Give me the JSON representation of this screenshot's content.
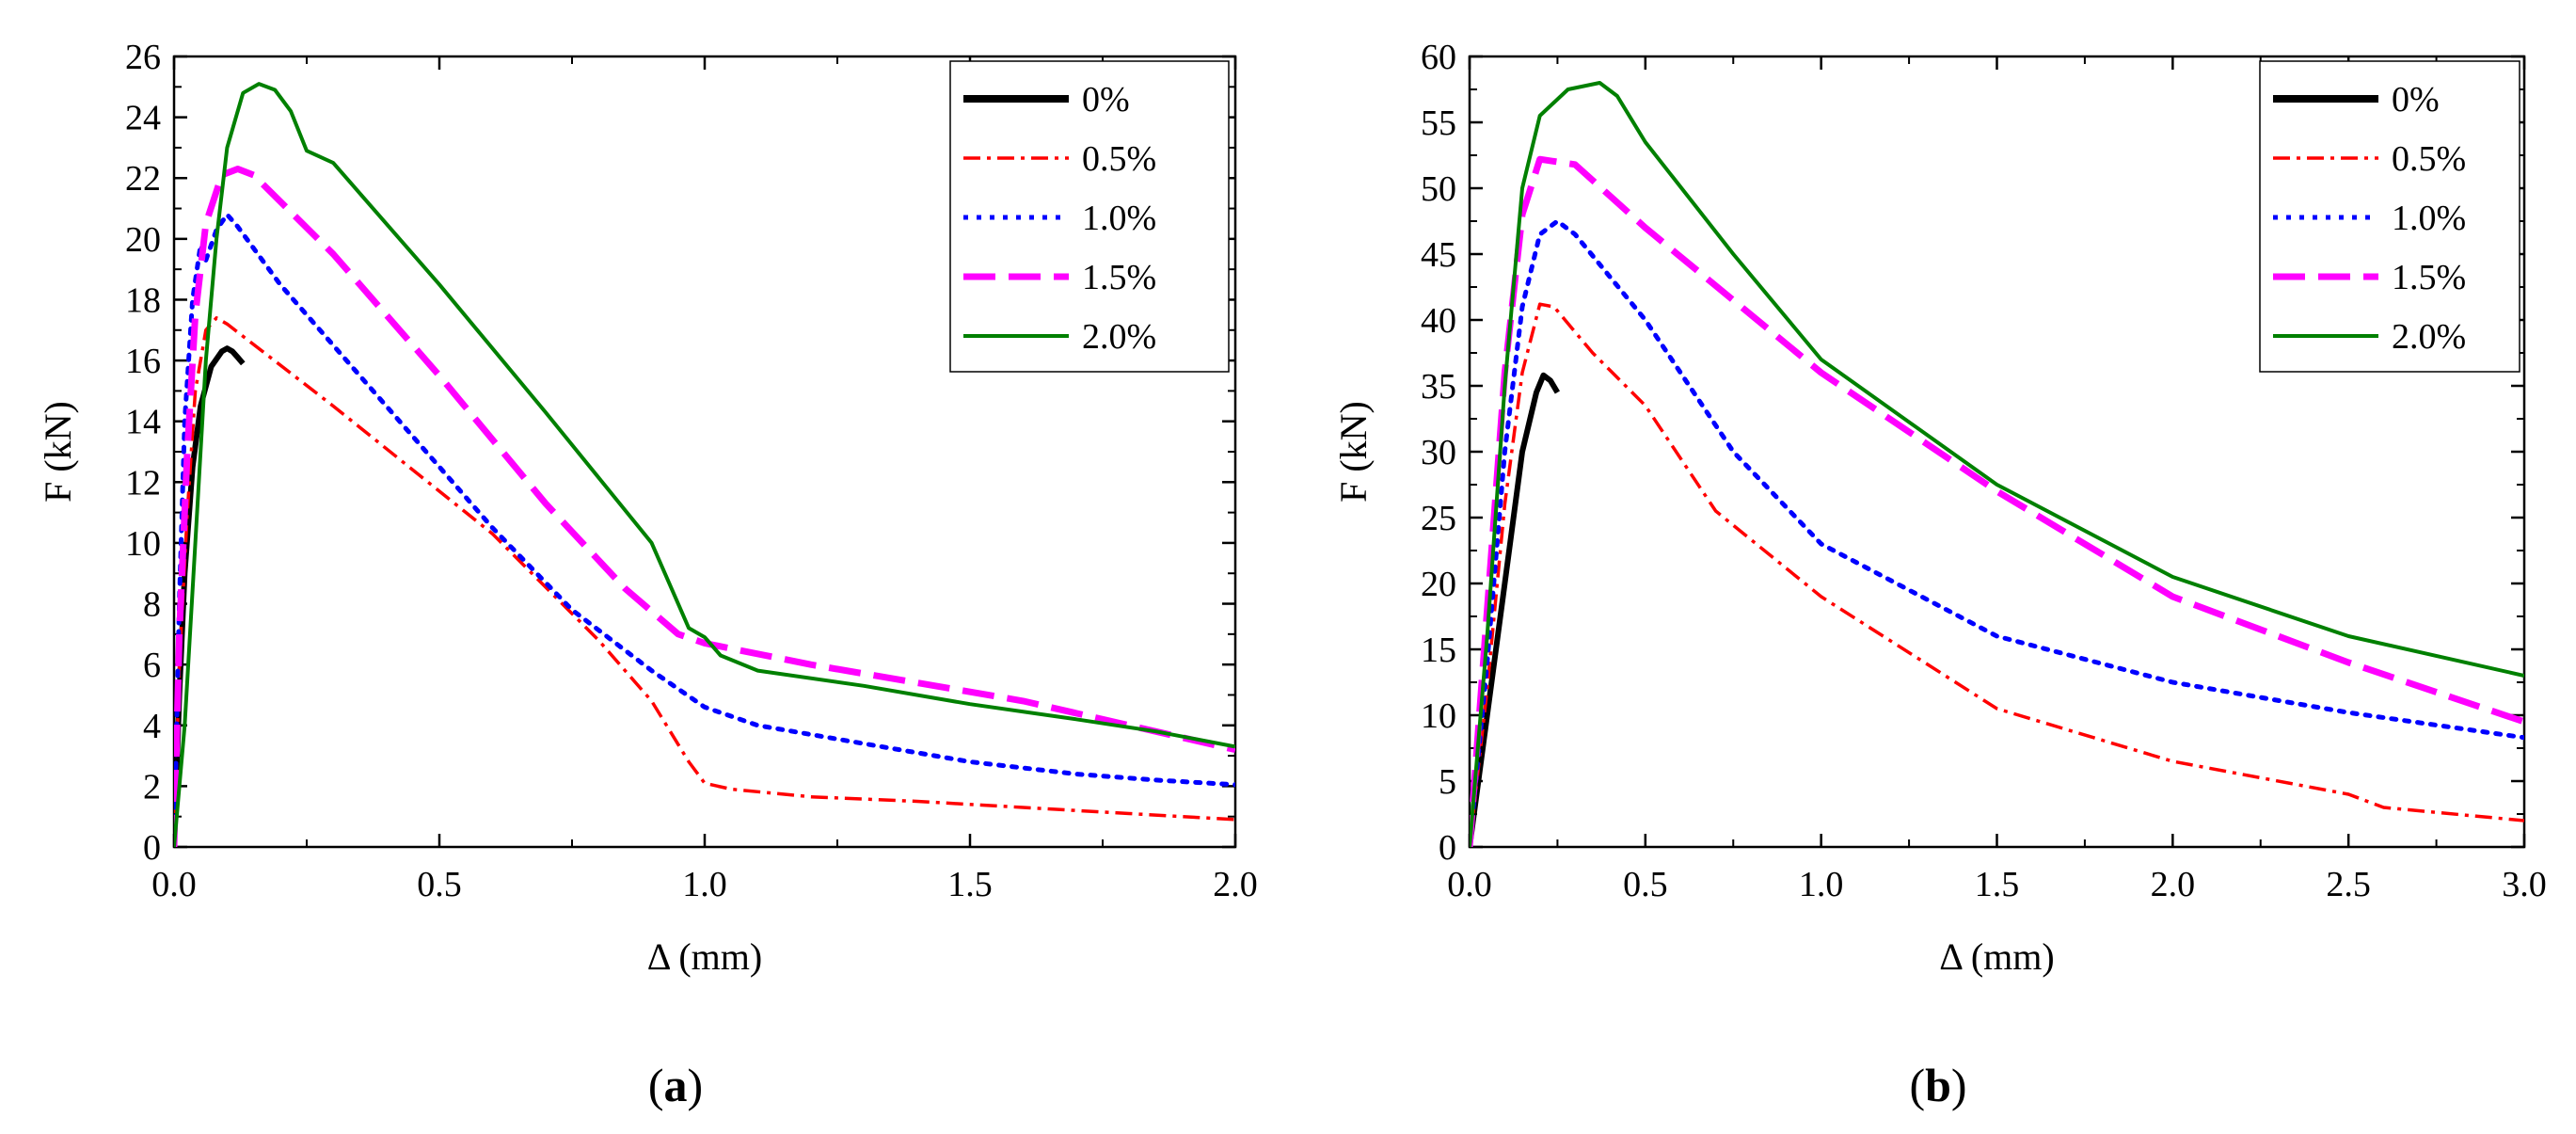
{
  "chart_data": [
    {
      "type": "line",
      "panel_label": "a",
      "xlabel": "Δ (mm)",
      "ylabel": "F (kN)",
      "xlim": [
        0,
        2.0
      ],
      "ylim": [
        0,
        26
      ],
      "xticks": [
        0,
        0.5,
        1.0,
        1.5,
        2.0
      ],
      "xtick_labels": [
        "0.0",
        "0.5",
        "1.0",
        "1.5",
        "2.0"
      ],
      "yticks": [
        0,
        2,
        4,
        6,
        8,
        10,
        12,
        14,
        16,
        18,
        20,
        22,
        24,
        26
      ],
      "ytick_labels": [
        "0",
        "2",
        "4",
        "6",
        "8",
        "10",
        "12",
        "14",
        "16",
        "18",
        "20",
        "22",
        "24",
        "26"
      ],
      "grid": false,
      "legend_position": "top-right",
      "series": [
        {
          "name": "0%",
          "color": "#000000",
          "dash": "solid",
          "points": [
            [
              0,
              0
            ],
            [
              0.01,
              5
            ],
            [
              0.02,
              9
            ],
            [
              0.035,
              12.5
            ],
            [
              0.05,
              14.5
            ],
            [
              0.07,
              15.8
            ],
            [
              0.09,
              16.3
            ],
            [
              0.1,
              16.4
            ],
            [
              0.11,
              16.3
            ],
            [
              0.12,
              16.1
            ],
            [
              0.13,
              15.9
            ]
          ]
        },
        {
          "name": "0.5%",
          "color": "#ff0000",
          "dash": "dashdot",
          "points": [
            [
              0,
              0
            ],
            [
              0.01,
              6
            ],
            [
              0.025,
              11
            ],
            [
              0.04,
              15
            ],
            [
              0.06,
              17
            ],
            [
              0.08,
              17.4
            ],
            [
              0.1,
              17.2
            ],
            [
              0.3,
              14.5
            ],
            [
              0.6,
              10.3
            ],
            [
              0.8,
              6.8
            ],
            [
              0.9,
              4.8
            ],
            [
              0.97,
              2.8
            ],
            [
              1.0,
              2.1
            ],
            [
              1.05,
              1.9
            ],
            [
              1.2,
              1.65
            ],
            [
              1.4,
              1.5
            ],
            [
              1.6,
              1.3
            ],
            [
              1.8,
              1.1
            ],
            [
              2.0,
              0.9
            ]
          ]
        },
        {
          "name": "1.0%",
          "color": "#0000ff",
          "dash": "dotted",
          "points": [
            [
              0,
              0
            ],
            [
              0.01,
              8
            ],
            [
              0.02,
              14
            ],
            [
              0.035,
              18
            ],
            [
              0.05,
              19.8
            ],
            [
              0.06,
              19.3
            ],
            [
              0.08,
              20.3
            ],
            [
              0.1,
              20.8
            ],
            [
              0.12,
              20.4
            ],
            [
              0.2,
              18.5
            ],
            [
              0.4,
              14.5
            ],
            [
              0.6,
              10.5
            ],
            [
              0.75,
              7.8
            ],
            [
              0.9,
              5.8
            ],
            [
              1.0,
              4.6
            ],
            [
              1.1,
              4.0
            ],
            [
              1.3,
              3.4
            ],
            [
              1.5,
              2.8
            ],
            [
              1.7,
              2.4
            ],
            [
              1.85,
              2.2
            ],
            [
              2.0,
              2.05
            ]
          ]
        },
        {
          "name": "1.5%",
          "color": "#ff00ff",
          "dash": "dashed",
          "points": [
            [
              0,
              0
            ],
            [
              0.01,
              7
            ],
            [
              0.025,
              13
            ],
            [
              0.04,
              17.5
            ],
            [
              0.06,
              20.5
            ],
            [
              0.09,
              22.1
            ],
            [
              0.12,
              22.3
            ],
            [
              0.15,
              22.1
            ],
            [
              0.3,
              19.5
            ],
            [
              0.5,
              15.5
            ],
            [
              0.7,
              11.3
            ],
            [
              0.85,
              8.5
            ],
            [
              0.95,
              7.0
            ],
            [
              1.0,
              6.7
            ],
            [
              1.2,
              6.0
            ],
            [
              1.4,
              5.4
            ],
            [
              1.6,
              4.8
            ],
            [
              1.8,
              4.0
            ],
            [
              2.0,
              3.2
            ]
          ]
        },
        {
          "name": "2.0%",
          "color": "#008000",
          "dash": "solid",
          "points": [
            [
              0,
              0
            ],
            [
              0.02,
              4
            ],
            [
              0.04,
              10
            ],
            [
              0.06,
              16
            ],
            [
              0.08,
              20
            ],
            [
              0.1,
              23
            ],
            [
              0.13,
              24.8
            ],
            [
              0.16,
              25.1
            ],
            [
              0.19,
              24.9
            ],
            [
              0.22,
              24.2
            ],
            [
              0.25,
              22.9
            ],
            [
              0.3,
              22.5
            ],
            [
              0.5,
              18.5
            ],
            [
              0.7,
              14.3
            ],
            [
              0.9,
              10.0
            ],
            [
              0.97,
              7.2
            ],
            [
              1.0,
              6.9
            ],
            [
              1.03,
              6.3
            ],
            [
              1.1,
              5.8
            ],
            [
              1.3,
              5.3
            ],
            [
              1.5,
              4.7
            ],
            [
              1.7,
              4.2
            ],
            [
              1.85,
              3.8
            ],
            [
              2.0,
              3.3
            ]
          ]
        }
      ]
    },
    {
      "type": "line",
      "panel_label": "b",
      "xlabel": "Δ (mm)",
      "ylabel": "F (kN)",
      "xlim": [
        0,
        3.0
      ],
      "ylim": [
        0,
        60
      ],
      "xticks": [
        0,
        0.5,
        1.0,
        1.5,
        2.0,
        2.5,
        3.0
      ],
      "xtick_labels": [
        "0.0",
        "0.5",
        "1.0",
        "1.5",
        "2.0",
        "2.5",
        "3.0"
      ],
      "yticks": [
        0,
        5,
        10,
        15,
        20,
        25,
        30,
        35,
        40,
        45,
        50,
        55,
        60
      ],
      "ytick_labels": [
        "0",
        "5",
        "10",
        "15",
        "20",
        "25",
        "30",
        "35",
        "40",
        "45",
        "50",
        "55",
        "60"
      ],
      "grid": false,
      "legend_position": "top-right",
      "series": [
        {
          "name": "0%",
          "color": "#000000",
          "dash": "solid",
          "points": [
            [
              0,
              0
            ],
            [
              0.05,
              10
            ],
            [
              0.1,
              20
            ],
            [
              0.15,
              30
            ],
            [
              0.19,
              34.5
            ],
            [
              0.21,
              35.8
            ],
            [
              0.23,
              35.4
            ],
            [
              0.25,
              34.5
            ]
          ]
        },
        {
          "name": "0.5%",
          "color": "#ff0000",
          "dash": "dashdot",
          "points": [
            [
              0,
              0
            ],
            [
              0.05,
              12
            ],
            [
              0.1,
              26
            ],
            [
              0.15,
              36
            ],
            [
              0.2,
              41.2
            ],
            [
              0.24,
              41.0
            ],
            [
              0.35,
              37.5
            ],
            [
              0.5,
              33.5
            ],
            [
              0.7,
              25.5
            ],
            [
              1.0,
              19.0
            ],
            [
              1.5,
              10.5
            ],
            [
              2.0,
              6.5
            ],
            [
              2.5,
              4.0
            ],
            [
              2.6,
              3.0
            ],
            [
              3.0,
              2.0
            ]
          ]
        },
        {
          "name": "1.0%",
          "color": "#0000ff",
          "dash": "dotted",
          "points": [
            [
              0,
              0
            ],
            [
              0.05,
              14
            ],
            [
              0.1,
              30
            ],
            [
              0.15,
              41
            ],
            [
              0.2,
              46.5
            ],
            [
              0.25,
              47.5
            ],
            [
              0.3,
              46.5
            ],
            [
              0.5,
              40
            ],
            [
              0.75,
              30
            ],
            [
              1.0,
              23
            ],
            [
              1.5,
              16
            ],
            [
              2.0,
              12.5
            ],
            [
              2.5,
              10.2
            ],
            [
              3.0,
              8.3
            ]
          ]
        },
        {
          "name": "1.5%",
          "color": "#ff00ff",
          "dash": "dashed",
          "points": [
            [
              0,
              0
            ],
            [
              0.05,
              18
            ],
            [
              0.1,
              36
            ],
            [
              0.15,
              48
            ],
            [
              0.2,
              52.2
            ],
            [
              0.3,
              51.8
            ],
            [
              0.5,
              47
            ],
            [
              0.75,
              41.5
            ],
            [
              1.0,
              36.0
            ],
            [
              1.5,
              27.0
            ],
            [
              2.0,
              19.0
            ],
            [
              2.5,
              14.0
            ],
            [
              3.0,
              9.5
            ]
          ]
        },
        {
          "name": "2.0%",
          "color": "#008000",
          "dash": "solid",
          "points": [
            [
              0,
              0
            ],
            [
              0.05,
              16
            ],
            [
              0.1,
              35
            ],
            [
              0.15,
              50
            ],
            [
              0.2,
              55.5
            ],
            [
              0.28,
              57.5
            ],
            [
              0.37,
              58.0
            ],
            [
              0.42,
              57.0
            ],
            [
              0.5,
              53.5
            ],
            [
              0.75,
              45
            ],
            [
              1.0,
              37
            ],
            [
              1.5,
              27.5
            ],
            [
              2.0,
              20.5
            ],
            [
              2.5,
              16.0
            ],
            [
              3.0,
              13.0
            ]
          ]
        }
      ]
    }
  ]
}
